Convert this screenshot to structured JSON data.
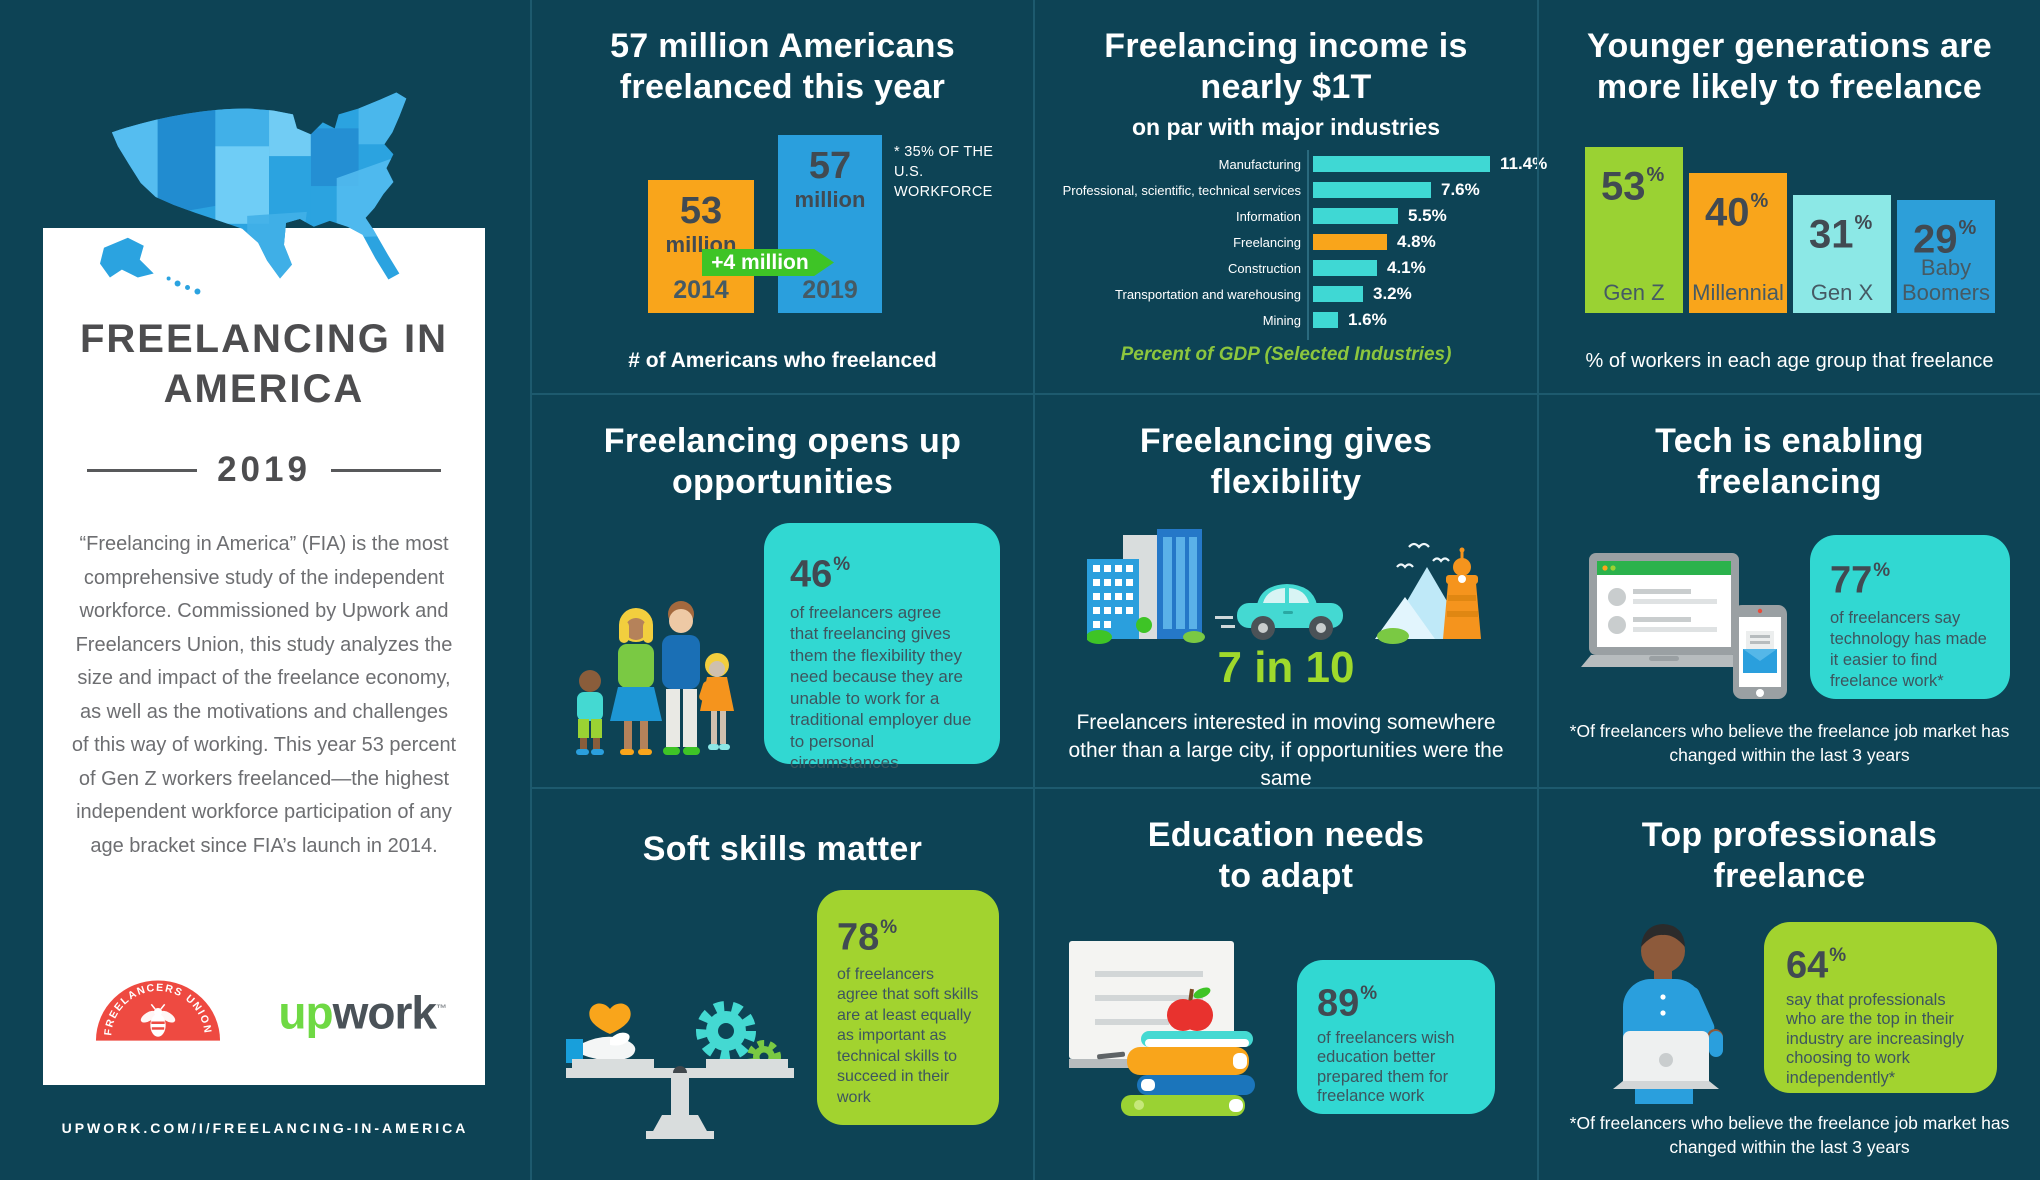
{
  "colors": {
    "background": "#0d4355",
    "divider": "#1d5a6e",
    "cyan_box": "#31d8d2",
    "lime_box": "#a2d32f",
    "orange": "#f9a51b",
    "blue": "#2a9fdd",
    "green_arrow": "#3ec426",
    "gdp_caption_green": "#8cc63e",
    "dark_text": "#414a52"
  },
  "sidebar": {
    "title_line1": "FREELANCING",
    "title_line2": "IN AMERICA",
    "year": "2019",
    "description": "“Freelancing in America” (FIA) is the most comprehensive study of the independent workforce. Commissioned by Upwork and Freelancers Union, this study analyzes the size and impact of the freelance economy, as well as the motivations and challenges of this way of working. This year 53 percent of Gen Z workers freelanced—the highest independent workforce participation of any age bracket since FIA’s launch in 2014.",
    "freelancers_union_logo_text": "FREELANCERS UNION",
    "upwork_up": "up",
    "upwork_work": "work",
    "upwork_mark": "™",
    "url": "UPWORK.COM/I/FREELANCING-IN-AMERICA"
  },
  "panels": {
    "americans": {
      "title_line1": "57 million Americans",
      "title_line2": "freelanced this year",
      "unit_label": "million",
      "note_line1": "* 35% OF THE U.S.",
      "note_line2": "WORKFORCE"
    },
    "income": {
      "title_line1": "Freelancing income is",
      "title_line2": "nearly $1T"
    },
    "generations": {
      "title_line1": "Younger generations are",
      "title_line2": "more likely to freelance"
    },
    "opportunities": {
      "title_line1": "Freelancing opens up",
      "title_line2": "opportunities",
      "stat": "46",
      "pct": "%",
      "text": "of freelancers agree that freelancing gives them the flexibility they need because they are unable to work for a traditional employer due to personal circumstances"
    },
    "flexibility": {
      "title_line1": "Freelancing gives",
      "title_line2": "flexibility",
      "stat": "7 in 10",
      "caption": "Freelancers interested in moving somewhere other than a large city, if opportunities were the same"
    },
    "tech": {
      "title_line1": "Tech is enabling",
      "title_line2": "freelancing",
      "stat": "77",
      "pct": "%",
      "text": "of freelancers say technology has made it easier to find freelance work*",
      "footnote": "*Of freelancers who believe the freelance job market has changed within the last 3 years"
    },
    "softskills": {
      "title": "Soft skills matter",
      "stat": "78",
      "pct": "%",
      "text": "of freelancers agree that soft skills are at least equally as important as technical skills to succeed in their work"
    },
    "education": {
      "title_line1": "Education needs",
      "title_line2": "to adapt",
      "stat": "89",
      "pct": "%",
      "text": "of freelancers wish education better prepared them for freelance work"
    },
    "professionals": {
      "title_line1": "Top professionals",
      "title_line2": "freelance",
      "stat": "64",
      "pct": "%",
      "text": "say that professionals who are the top in their industry are increasingly choosing to work independently*",
      "footnote": "*Of freelancers who believe the freelance job market has changed within the last 3 years"
    }
  },
  "chart_data": [
    {
      "type": "bar",
      "title": "57 million Americans freelanced this year",
      "categories": [
        "2014",
        "2019"
      ],
      "values": [
        53,
        57
      ],
      "unit": "million Americans",
      "bar_colors": [
        "#f9a51b",
        "#2a9fdd"
      ],
      "annotation": "+4 million",
      "note": "* 35% of the U.S. workforce",
      "caption": "# of Americans who freelanced",
      "ylim": [
        0,
        60
      ],
      "grid": false
    },
    {
      "type": "bar",
      "orientation": "horizontal",
      "title": "Freelancing income is nearly $1T",
      "subtitle": "on par with major industries",
      "categories": [
        "Manufacturing",
        "Professional, scientific, technical services",
        "Information",
        "Freelancing",
        "Construction",
        "Transportation and warehousing",
        "Mining"
      ],
      "values": [
        11.4,
        7.6,
        5.5,
        4.8,
        4.1,
        3.2,
        1.6
      ],
      "unit": "% of GDP",
      "bar_color": "#3fd8d4",
      "highlight_category": "Freelancing",
      "highlight_color": "#f9a51b",
      "caption": "Percent of GDP (Selected Industries)",
      "xlim": [
        0,
        12
      ],
      "grid": false,
      "legend": false
    },
    {
      "type": "bar",
      "title": "Younger generations are more likely to freelance",
      "categories": [
        "Gen Z",
        "Millennial",
        "Gen X",
        "Baby Boomers"
      ],
      "values": [
        53,
        40,
        31,
        29
      ],
      "unit": "% of workers in each age group that freelance",
      "colors": [
        "#9ad233",
        "#f9a51b",
        "#8ce8e6",
        "#2d9fd9"
      ],
      "caption": "% of workers in each age group that freelance",
      "ylim": [
        0,
        60
      ],
      "grid": false
    }
  ]
}
